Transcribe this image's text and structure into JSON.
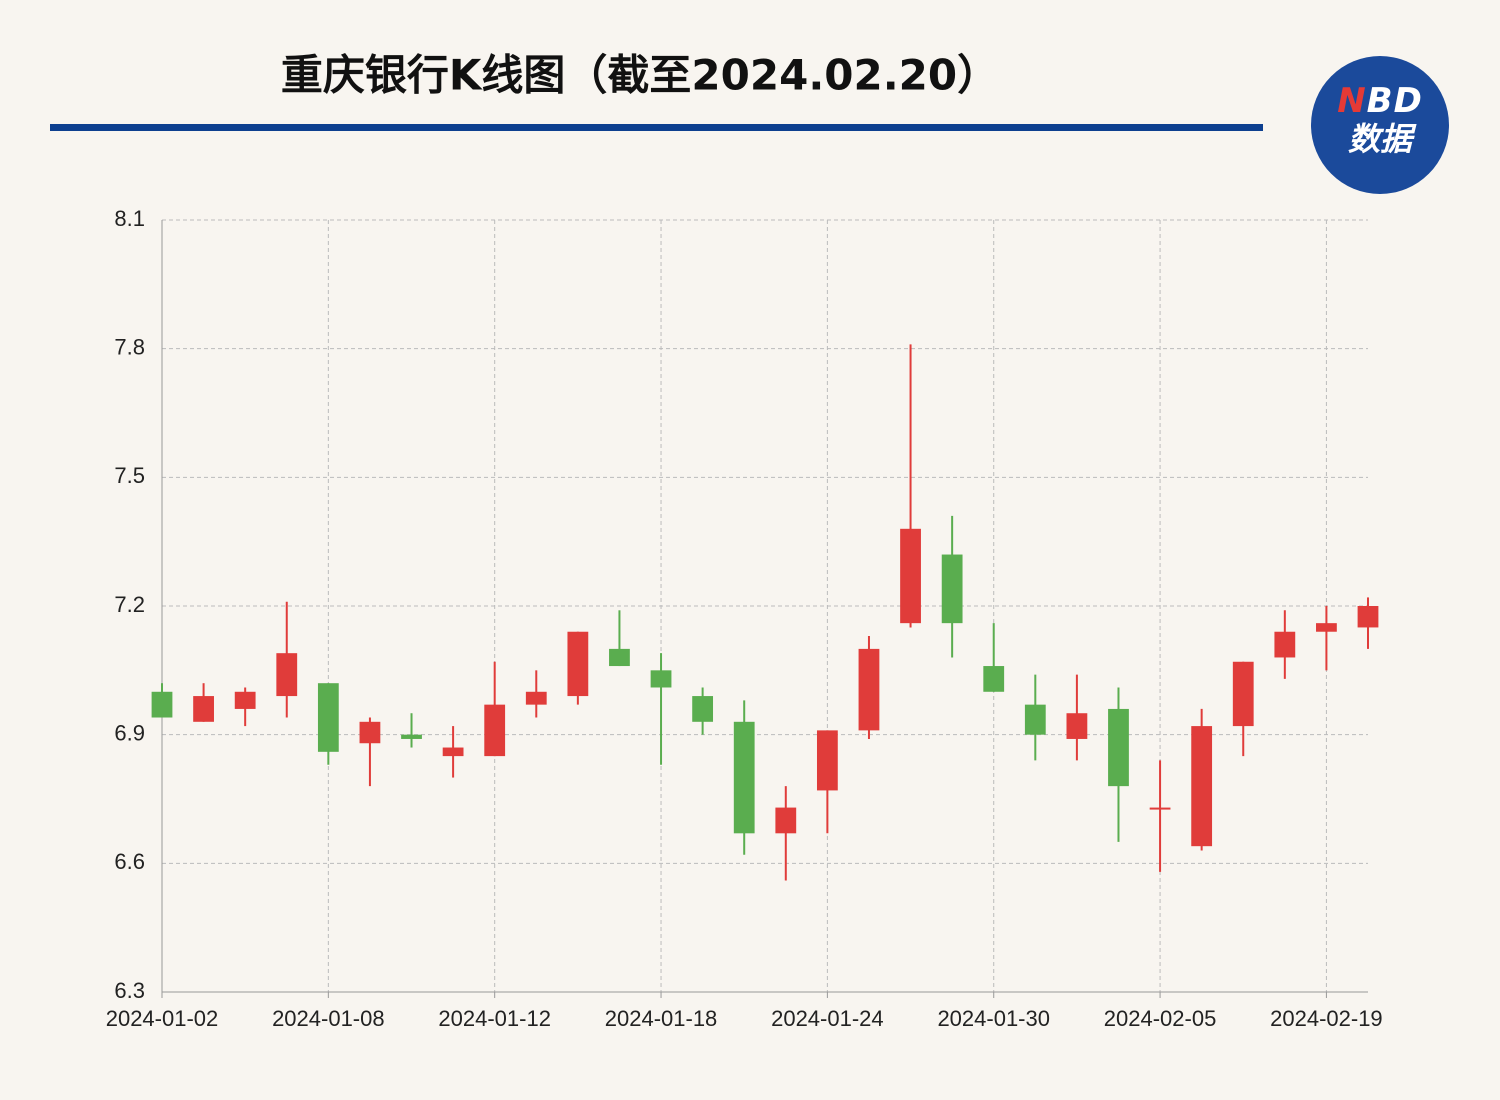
{
  "chart_data": {
    "type": "candlestick",
    "title": "重庆银行K线图（截至2024.02.20）",
    "categories": [
      "2024-01-02",
      null,
      null,
      null,
      "2024-01-08",
      null,
      null,
      null,
      "2024-01-12",
      null,
      null,
      null,
      "2024-01-18",
      null,
      null,
      null,
      "2024-01-24",
      null,
      null,
      null,
      "2024-01-30",
      null,
      null,
      null,
      "2024-02-05",
      null,
      null,
      null,
      "2024-02-19",
      null
    ],
    "open": [
      7.0,
      6.93,
      6.96,
      6.99,
      7.02,
      6.88,
      6.9,
      6.85,
      6.85,
      6.97,
      6.99,
      7.1,
      7.05,
      6.99,
      6.93,
      6.67,
      6.77,
      6.91,
      7.16,
      7.32,
      7.06,
      6.97,
      6.89,
      6.96,
      6.73,
      6.64,
      6.92,
      7.08,
      7.14,
      7.15
    ],
    "high": [
      7.02,
      7.02,
      7.01,
      7.21,
      7.02,
      6.94,
      6.95,
      6.92,
      7.07,
      7.05,
      7.14,
      7.19,
      7.09,
      7.01,
      6.98,
      6.78,
      6.91,
      7.13,
      7.81,
      7.41,
      7.16,
      7.04,
      7.04,
      7.01,
      6.84,
      6.96,
      7.07,
      7.19,
      7.2,
      7.22
    ],
    "low": [
      6.94,
      6.93,
      6.92,
      6.94,
      6.83,
      6.78,
      6.87,
      6.8,
      6.85,
      6.94,
      6.97,
      7.06,
      6.83,
      6.9,
      6.62,
      6.56,
      6.67,
      6.89,
      7.15,
      7.08,
      7.0,
      6.84,
      6.84,
      6.65,
      6.58,
      6.63,
      6.85,
      7.03,
      7.05,
      7.1
    ],
    "close": [
      6.94,
      6.99,
      7.0,
      7.09,
      6.86,
      6.93,
      6.89,
      6.87,
      6.97,
      7.0,
      7.14,
      7.06,
      7.01,
      6.93,
      6.67,
      6.73,
      6.91,
      7.1,
      7.38,
      7.16,
      7.0,
      6.9,
      6.95,
      6.78,
      6.73,
      6.92,
      7.07,
      7.14,
      7.16,
      7.2
    ],
    "up_color": "#e03c3a",
    "down_color": "#5aad4f",
    "ylim": [
      6.3,
      8.1
    ],
    "yticks": [
      6.3,
      6.6,
      6.9,
      7.2,
      7.5,
      7.8,
      8.1
    ],
    "grid": true
  },
  "logo": {
    "brand": "NBD",
    "label": "数据"
  }
}
